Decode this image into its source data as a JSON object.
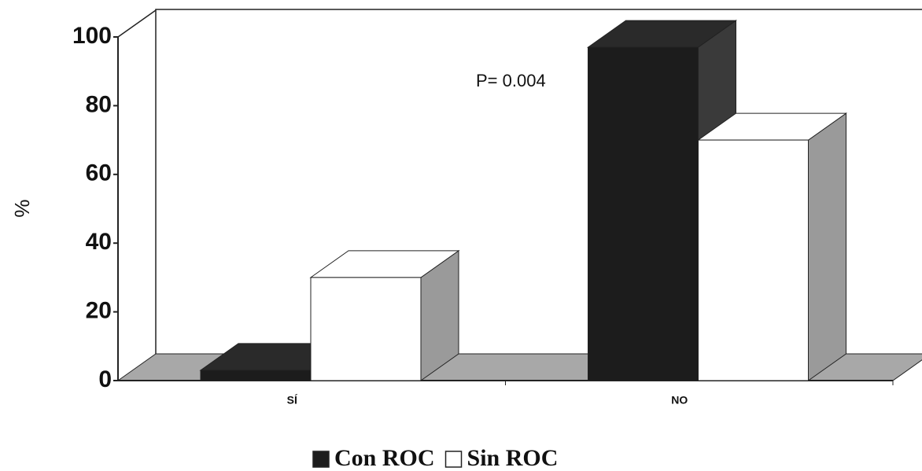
{
  "chart_data": {
    "type": "bar3d",
    "ylabel": "%",
    "categories": [
      "SÍ",
      "NO"
    ],
    "series": [
      {
        "name": "Con ROC",
        "color": "#1c1c1c",
        "values": [
          3,
          97
        ]
      },
      {
        "name": "Sin ROC",
        "color": "#ffffff",
        "values": [
          30,
          70
        ]
      }
    ],
    "ylim": [
      0,
      100
    ],
    "yticks": [
      0,
      20,
      40,
      60,
      80,
      100
    ],
    "annotation": "P= 0.004"
  }
}
